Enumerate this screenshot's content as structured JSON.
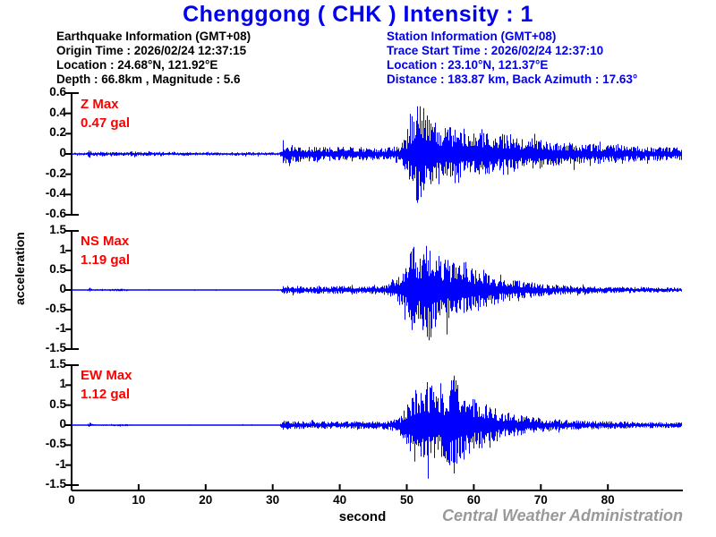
{
  "title": "Chenggong ( CHK ) Intensity : 1",
  "earthquake_info": {
    "header": "Earthquake Information  (GMT+08)",
    "origin_time": "Origin Time : 2026/02/24 12:37:15",
    "location": "Location : 24.68°N, 121.92°E",
    "depth_magnitude": "Depth : 66.8km , Magnitude : 5.6"
  },
  "station_info": {
    "header": "Station Information  (GMT+08)",
    "trace_start_time": "Trace Start Time : 2026/02/24 12:37:10",
    "location": "Location : 23.10°N, 121.37°E",
    "distance_azimuth": "Distance : 183.87 km, Back Azimuth : 17.63°"
  },
  "axes": {
    "xlabel": "second",
    "ylabel": "acceleration"
  },
  "watermark": "Central Weather Administration",
  "colors": {
    "title_blue": "#0000EE",
    "station_blue": "#0000EE",
    "trace_blue": "#0000FF",
    "max_red": "#FF0000",
    "axis_black": "#000000",
    "watermark_gray": "#999999"
  },
  "chart_data": {
    "type": "line",
    "title": "Chenggong ( CHK ) Intensity : 1",
    "xlabel": "second",
    "ylabel": "acceleration (gal)",
    "x_range": [
      0,
      91
    ],
    "x_tick_values": [
      0,
      10,
      20,
      30,
      40,
      50,
      60,
      70,
      80
    ],
    "x_tick_labels": [
      "0",
      "10",
      "20",
      "30",
      "40",
      "50",
      "60",
      "70",
      "80"
    ],
    "grid": false,
    "panels": [
      {
        "channel": "Z",
        "max_label": "Z Max",
        "max_value": "0.47 gal",
        "max_gal": 0.47,
        "ylim": [
          -0.6,
          0.6
        ],
        "y_tick_values": [
          0.6,
          0.4,
          0.2,
          0,
          -0.2,
          -0.4,
          -0.6
        ],
        "y_tick_labels": [
          "0.6",
          "0.4",
          "0.2",
          "0",
          "-0.2",
          "-0.4",
          "-0.6"
        ],
        "peak": {
          "t": 52,
          "gal": 0.47,
          "dir": 1
        },
        "envelope": [
          [
            0,
            0.012
          ],
          [
            2.2,
            0.012
          ],
          [
            2.6,
            0.04
          ],
          [
            3.2,
            0.016
          ],
          [
            4.5,
            0.028
          ],
          [
            5.5,
            0.014
          ],
          [
            9,
            0.022
          ],
          [
            11,
            0.018
          ],
          [
            15,
            0.02
          ],
          [
            18,
            0.014
          ],
          [
            25,
            0.016
          ],
          [
            31,
            0.013
          ],
          [
            31.5,
            0.09
          ],
          [
            34,
            0.07
          ],
          [
            38,
            0.06
          ],
          [
            42,
            0.065
          ],
          [
            46,
            0.055
          ],
          [
            49,
            0.08
          ],
          [
            50,
            0.16
          ],
          [
            51,
            0.4
          ],
          [
            52,
            0.47
          ],
          [
            53,
            0.34
          ],
          [
            54.5,
            0.28
          ],
          [
            56,
            0.22
          ],
          [
            57.5,
            0.26
          ],
          [
            59,
            0.2
          ],
          [
            61,
            0.22
          ],
          [
            63,
            0.16
          ],
          [
            65,
            0.18
          ],
          [
            67,
            0.13
          ],
          [
            69,
            0.14
          ],
          [
            71,
            0.11
          ],
          [
            74,
            0.1
          ],
          [
            77,
            0.09
          ],
          [
            80,
            0.08
          ],
          [
            84,
            0.07
          ],
          [
            88,
            0.06
          ],
          [
            91,
            0.055
          ]
        ]
      },
      {
        "channel": "NS",
        "max_label": "NS Max",
        "max_value": "1.19 gal",
        "max_gal": 1.19,
        "ylim": [
          -1.5,
          1.5
        ],
        "y_tick_values": [
          1.5,
          1,
          0.5,
          0,
          -0.5,
          -1,
          -1.5
        ],
        "y_tick_labels": [
          "1.5",
          "1",
          "0.5",
          "0",
          "-0.5",
          "-1",
          "-1.5"
        ],
        "peak": {
          "t": 53,
          "gal": 1.19,
          "dir": -1
        },
        "envelope": [
          [
            0,
            0.015
          ],
          [
            2.2,
            0.015
          ],
          [
            2.6,
            0.055
          ],
          [
            3.2,
            0.02
          ],
          [
            8,
            0.03
          ],
          [
            9,
            0.016
          ],
          [
            20,
            0.015
          ],
          [
            31,
            0.016
          ],
          [
            31.5,
            0.1
          ],
          [
            36,
            0.08
          ],
          [
            40,
            0.09
          ],
          [
            44,
            0.08
          ],
          [
            47,
            0.12
          ],
          [
            48.5,
            0.25
          ],
          [
            50,
            0.6
          ],
          [
            51,
            1.05
          ],
          [
            52,
            0.9
          ],
          [
            53,
            1.19
          ],
          [
            54,
            0.95
          ],
          [
            55.5,
            0.75
          ],
          [
            57,
            0.6
          ],
          [
            58.5,
            0.65
          ],
          [
            60,
            0.5
          ],
          [
            62,
            0.38
          ],
          [
            64,
            0.28
          ],
          [
            66,
            0.22
          ],
          [
            68,
            0.18
          ],
          [
            70,
            0.14
          ],
          [
            73,
            0.11
          ],
          [
            76,
            0.09
          ],
          [
            80,
            0.08
          ],
          [
            85,
            0.065
          ],
          [
            91,
            0.055
          ]
        ]
      },
      {
        "channel": "EW",
        "max_label": "EW Max",
        "max_value": "1.12 gal",
        "max_gal": 1.12,
        "ylim": [
          -1.5,
          1.5
        ],
        "y_tick_values": [
          1.5,
          1,
          0.5,
          0,
          -0.5,
          -1,
          -1.5
        ],
        "y_tick_labels": [
          "1.5",
          "1",
          "0.5",
          "0",
          "-0.5",
          "-1",
          "-1.5"
        ],
        "peak": {
          "t": 57.3,
          "gal": 1.12,
          "dir": 1
        },
        "envelope": [
          [
            0,
            0.015
          ],
          [
            2.2,
            0.015
          ],
          [
            2.6,
            0.045
          ],
          [
            3.2,
            0.02
          ],
          [
            8,
            0.025
          ],
          [
            9,
            0.015
          ],
          [
            20,
            0.015
          ],
          [
            31,
            0.016
          ],
          [
            31.5,
            0.1
          ],
          [
            36,
            0.08
          ],
          [
            40,
            0.085
          ],
          [
            44,
            0.08
          ],
          [
            47,
            0.1
          ],
          [
            49,
            0.18
          ],
          [
            50,
            0.5
          ],
          [
            51.5,
            0.95
          ],
          [
            53,
            1.0
          ],
          [
            54.5,
            0.8
          ],
          [
            56,
            0.85
          ],
          [
            57.3,
            1.12
          ],
          [
            58.5,
            0.75
          ],
          [
            60,
            0.6
          ],
          [
            62,
            0.45
          ],
          [
            64,
            0.32
          ],
          [
            66,
            0.25
          ],
          [
            68,
            0.2
          ],
          [
            70,
            0.15
          ],
          [
            73,
            0.12
          ],
          [
            76,
            0.1
          ],
          [
            80,
            0.085
          ],
          [
            85,
            0.07
          ],
          [
            91,
            0.06
          ]
        ]
      }
    ]
  }
}
